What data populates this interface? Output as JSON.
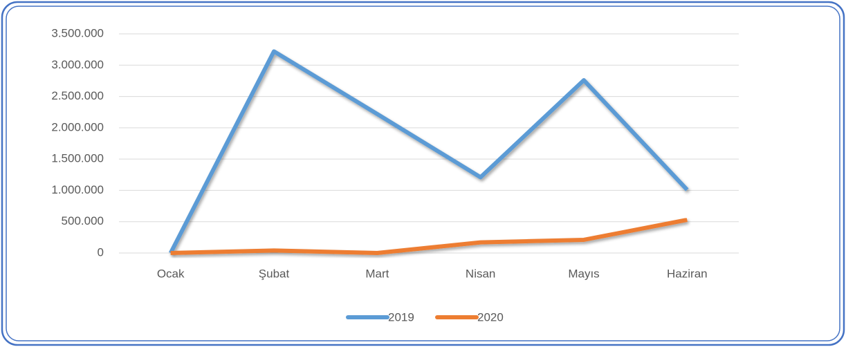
{
  "chart_data": {
    "type": "line",
    "categories": [
      "Ocak",
      "Şubat",
      "Mart",
      "Nisan",
      "Mayıs",
      "Haziran"
    ],
    "series": [
      {
        "name": "2019",
        "color": "#5b9bd5",
        "values": [
          0,
          3220000,
          2220000,
          1210000,
          2760000,
          1010000
        ]
      },
      {
        "name": "2020",
        "color": "#ed7d31",
        "values": [
          0,
          40000,
          0,
          170000,
          210000,
          530000
        ]
      }
    ],
    "ylim": [
      0,
      3500000
    ],
    "yticks": [
      0,
      {
        "value": 500000,
        "label": "500.000"
      },
      {
        "value": 1000000,
        "label": "1.000.000"
      },
      {
        "value": 1500000,
        "label": "1.500.000"
      },
      {
        "value": 2000000,
        "label": "2.000.000"
      },
      {
        "value": 2500000,
        "label": "2.500.000"
      },
      {
        "value": 3000000,
        "label": "3.000.000"
      },
      {
        "value": 3500000,
        "label": "3.500.000"
      }
    ],
    "grid": true,
    "legend": "bottom"
  }
}
